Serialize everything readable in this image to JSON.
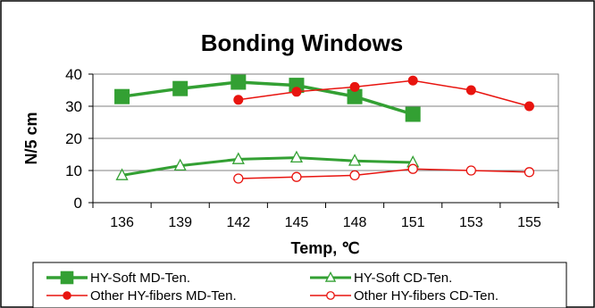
{
  "chart_data": {
    "type": "line",
    "title": "Bonding Windows",
    "xlabel": "Temp, ℃",
    "ylabel": "N/5 cm",
    "categories": [
      "136",
      "139",
      "142",
      "145",
      "148",
      "151",
      "153",
      "155"
    ],
    "ylim": [
      0,
      40
    ],
    "yticks": [
      0,
      10,
      20,
      30,
      40
    ],
    "grid": "horizontal",
    "legend_position": "bottom",
    "series": [
      {
        "name": "HY-Soft MD-Ten.",
        "color": "#33A033",
        "marker": "filled-square",
        "values": [
          33,
          35.5,
          37.5,
          36.5,
          33,
          27.5,
          null,
          null
        ]
      },
      {
        "name": "HY-Soft CD-Ten.",
        "color": "#33A033",
        "marker": "open-triangle",
        "values": [
          8.5,
          11.5,
          13.5,
          14,
          13,
          12.5,
          null,
          null
        ]
      },
      {
        "name": "Other HY-fibers MD-Ten.",
        "color": "#E8140F",
        "marker": "filled-circle",
        "values": [
          null,
          null,
          32,
          34.5,
          36,
          38,
          35,
          30
        ]
      },
      {
        "name": "Other HY-fibers CD-Ten.",
        "color": "#E8140F",
        "marker": "open-circle",
        "values": [
          null,
          null,
          7.5,
          8,
          8.5,
          10.5,
          10,
          9.5
        ]
      }
    ]
  }
}
